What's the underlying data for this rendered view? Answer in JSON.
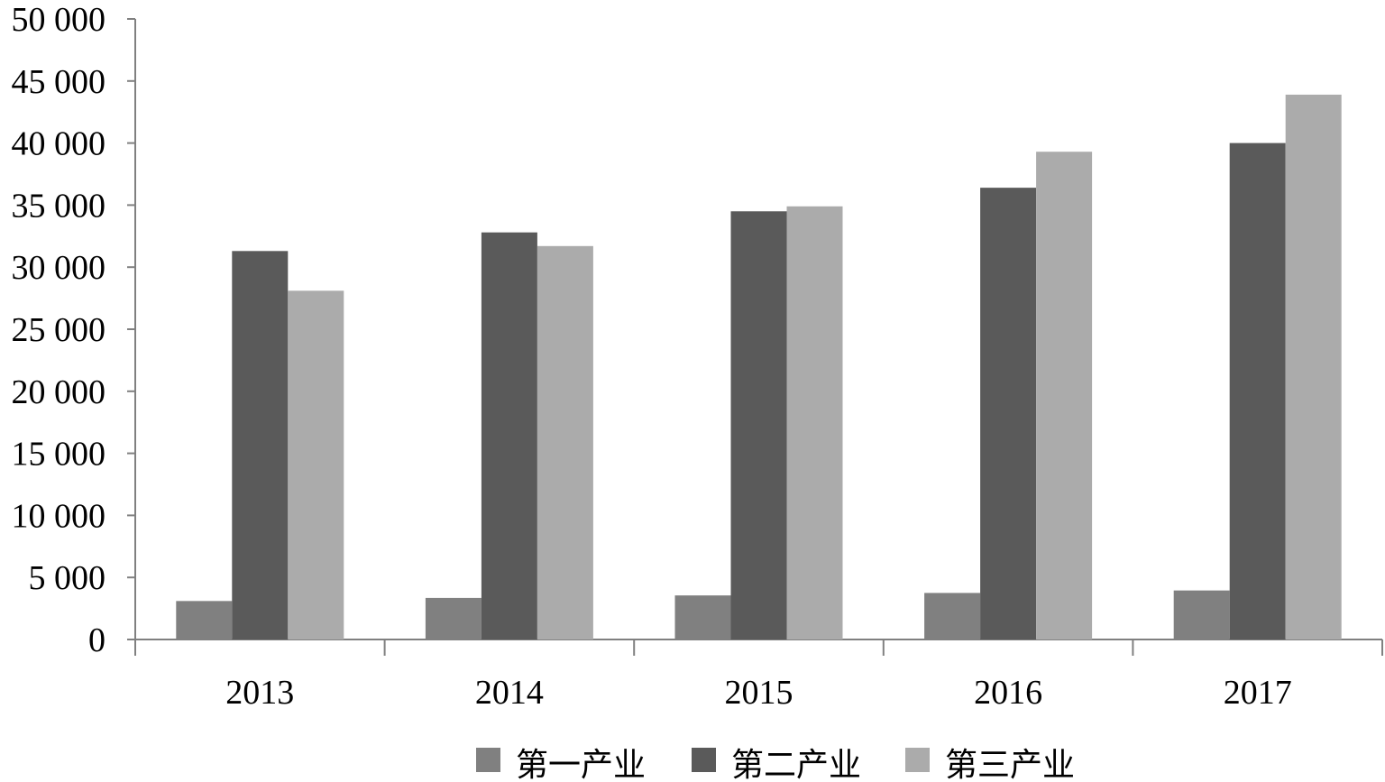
{
  "chart_data": {
    "type": "bar",
    "title": "",
    "xlabel": "",
    "ylabel": "",
    "categories": [
      "2013",
      "2014",
      "2015",
      "2016",
      "2017"
    ],
    "series": [
      {
        "name": "第一产业",
        "color": "#808080",
        "values": [
          3100,
          3350,
          3550,
          3750,
          3950
        ]
      },
      {
        "name": "第二产业",
        "color": "#5a5a5a",
        "values": [
          31300,
          32800,
          34500,
          36400,
          40000
        ]
      },
      {
        "name": "第三产业",
        "color": "#ababab",
        "values": [
          28100,
          31700,
          34900,
          39300,
          43900
        ]
      }
    ],
    "ylim": [
      0,
      50000
    ],
    "yticks": [
      {
        "value": 0,
        "label": "0"
      },
      {
        "value": 5000,
        "label": "5 000"
      },
      {
        "value": 10000,
        "label": "10 000"
      },
      {
        "value": 15000,
        "label": "15 000"
      },
      {
        "value": 20000,
        "label": "20 000"
      },
      {
        "value": 25000,
        "label": "25 000"
      },
      {
        "value": 30000,
        "label": "30 000"
      },
      {
        "value": 35000,
        "label": "35 000"
      },
      {
        "value": 40000,
        "label": "40 000"
      },
      {
        "value": 45000,
        "label": "45 000"
      },
      {
        "value": 50000,
        "label": "50 000"
      }
    ],
    "grid": false,
    "legend_position": "bottom",
    "axis_color": "#808080"
  }
}
